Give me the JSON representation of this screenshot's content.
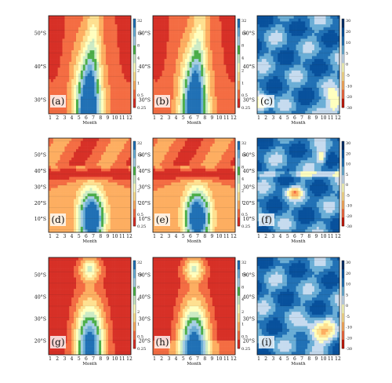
{
  "figure": {
    "month_ticks": [
      "1",
      "2",
      "3",
      "4",
      "5",
      "6",
      "7",
      "8",
      "9",
      "10",
      "11",
      "12"
    ],
    "month_axis_label": "Month",
    "panels": [
      {
        "id": "a",
        "label": "(a)",
        "lat_ticks": [
          "50°S",
          "40°S",
          "30°S"
        ],
        "colorbar": "left",
        "xlabel": "Month"
      },
      {
        "id": "b",
        "label": "(b)",
        "lat_ticks": [
          "50°S",
          "40°S",
          "30°S"
        ],
        "colorbar": "left",
        "xlabel": "Month"
      },
      {
        "id": "c",
        "label": "(c)",
        "lat_ticks": [
          "50°S",
          "40°S",
          "30°S"
        ],
        "colorbar": "right",
        "xlabel": "Month"
      },
      {
        "id": "d",
        "label": "(d)",
        "lat_ticks": [
          "50°S",
          "40°S",
          "30°S",
          "20°S",
          "10°S"
        ],
        "colorbar": "left",
        "xlabel": "Month"
      },
      {
        "id": "e",
        "label": "(e)",
        "lat_ticks": [
          "50°S",
          "40°S",
          "30°S",
          "20°S",
          "10°S"
        ],
        "colorbar": "left",
        "xlabel": "Month"
      },
      {
        "id": "f",
        "label": "(f)",
        "lat_ticks": [
          "50°S",
          "40°S",
          "30°S",
          "20°S",
          "10°S"
        ],
        "colorbar": "right",
        "xlabel": "Month"
      },
      {
        "id": "g",
        "label": "(g)",
        "lat_ticks": [
          "50°S",
          "40°S",
          "30°S",
          "20°S"
        ],
        "colorbar": "left",
        "xlabel": "Month"
      },
      {
        "id": "h",
        "label": "(h)",
        "lat_ticks": [
          "50°S",
          "40°S",
          "30°S",
          "20°S"
        ],
        "colorbar": "left",
        "xlabel": "Month"
      },
      {
        "id": "i",
        "label": "(i)",
        "lat_ticks": [
          "50°S",
          "40°S",
          "30°S",
          "20°S"
        ],
        "colorbar": "right",
        "xlabel": "Month"
      }
    ],
    "colorbar_levels_left": [
      "32",
      "16",
      "8",
      "4",
      "2",
      "1",
      "0.5",
      "0.25"
    ],
    "colorbar_levels_right": [
      "30",
      "20",
      "10",
      "5",
      "0",
      "-5",
      "-10",
      "-20",
      "-30"
    ],
    "colors_left": [
      "#d73027",
      "#f46d43",
      "#fdae61",
      "#fee090",
      "#ffffbf",
      "#ccebc5",
      "#4daf4a",
      "#a6cee3",
      "#6baed6",
      "#2171b5"
    ],
    "colors_right": [
      "#c51b0c",
      "#f46d43",
      "#fdae61",
      "#fee090",
      "#ffffbf",
      "#c6dbef",
      "#6baed6",
      "#2171b5",
      "#08519c",
      "#08306b"
    ]
  },
  "chart_data": [
    {
      "type": "heatmap",
      "panel": "a",
      "x": [
        1,
        2,
        3,
        4,
        5,
        6,
        7,
        8,
        9,
        10,
        11,
        12
      ],
      "xlabel": "Month",
      "ylim": [
        "25°S",
        "60°S"
      ],
      "note_values": "contour field: low (blue) core months 5-8 near 30°S, high (orange) at margins"
    },
    {
      "type": "heatmap",
      "panel": "b",
      "x": [
        1,
        2,
        3,
        4,
        5,
        6,
        7,
        8,
        9,
        10,
        11,
        12
      ],
      "xlabel": "Month",
      "ylim": [
        "25°S",
        "60°S"
      ]
    },
    {
      "type": "heatmap",
      "panel": "c",
      "x": [
        1,
        2,
        3,
        4,
        5,
        6,
        7,
        8,
        9,
        10,
        11,
        12
      ],
      "xlabel": "Month",
      "ylim": [
        "25°S",
        "60°S"
      ]
    },
    {
      "type": "heatmap",
      "panel": "d",
      "x": [
        1,
        2,
        3,
        4,
        5,
        6,
        7,
        8,
        9,
        10,
        11,
        12
      ],
      "xlabel": "Month",
      "ylim": [
        "10°S",
        "60°S"
      ]
    },
    {
      "type": "heatmap",
      "panel": "e",
      "x": [
        1,
        2,
        3,
        4,
        5,
        6,
        7,
        8,
        9,
        10,
        11,
        12
      ],
      "xlabel": "Month",
      "ylim": [
        "10°S",
        "60°S"
      ]
    },
    {
      "type": "heatmap",
      "panel": "f",
      "x": [
        1,
        2,
        3,
        4,
        5,
        6,
        7,
        8,
        9,
        10,
        11,
        12
      ],
      "xlabel": "Month",
      "ylim": [
        "10°S",
        "60°S"
      ]
    },
    {
      "type": "heatmap",
      "panel": "g",
      "x": [
        1,
        2,
        3,
        4,
        5,
        6,
        7,
        8,
        9,
        10,
        11,
        12
      ],
      "xlabel": "Month",
      "ylim": [
        "15°S",
        "55°S"
      ]
    },
    {
      "type": "heatmap",
      "panel": "h",
      "x": [
        1,
        2,
        3,
        4,
        5,
        6,
        7,
        8,
        9,
        10,
        11,
        12
      ],
      "xlabel": "Month",
      "ylim": [
        "15°S",
        "55°S"
      ]
    },
    {
      "type": "heatmap",
      "panel": "i",
      "x": [
        1,
        2,
        3,
        4,
        5,
        6,
        7,
        8,
        9,
        10,
        11,
        12
      ],
      "xlabel": "Month",
      "ylim": [
        "15°S",
        "55°S"
      ]
    }
  ]
}
